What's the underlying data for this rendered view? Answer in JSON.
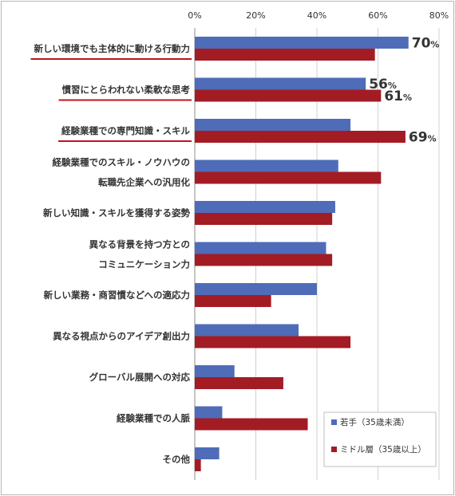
{
  "chart_data": {
    "type": "bar",
    "orientation": "horizontal",
    "xlim": [
      0,
      80
    ],
    "ticks": [
      "0%",
      "20%",
      "40%",
      "60%",
      "80%"
    ],
    "tick_values": [
      0,
      20,
      40,
      60,
      80
    ],
    "grid": true,
    "categories": [
      {
        "lines": [
          "新しい環境でも主体的に動ける行動力"
        ],
        "underline": true
      },
      {
        "lines": [
          "慣習にとらわれない柔軟な思考"
        ],
        "underline": true
      },
      {
        "lines": [
          "経験業種での専門知識・スキル"
        ],
        "underline": true
      },
      {
        "lines": [
          "経験業種でのスキル・ノウハウの",
          "転職先企業への汎用化"
        ],
        "underline": false
      },
      {
        "lines": [
          "新しい知識・スキルを獲得する姿勢"
        ],
        "underline": false
      },
      {
        "lines": [
          "異なる背景を持つ方との",
          "コミュニケーション力"
        ],
        "underline": false
      },
      {
        "lines": [
          "新しい業務・商習慣などへの適応力"
        ],
        "underline": false
      },
      {
        "lines": [
          "異なる視点からのアイデア創出力"
        ],
        "underline": false
      },
      {
        "lines": [
          "グローバル展開への対応"
        ],
        "underline": false
      },
      {
        "lines": [
          "経験業種での人脈"
        ],
        "underline": false
      },
      {
        "lines": [
          "その他"
        ],
        "underline": false
      }
    ],
    "series": [
      {
        "name": "若手（35歳未満）",
        "color": "#4f6cb8",
        "values": [
          70,
          56,
          51,
          47,
          46,
          43,
          40,
          34,
          13,
          9,
          8
        ]
      },
      {
        "name": "ミドル層（35歳以上）",
        "color": "#a31c24",
        "values": [
          59,
          61,
          69,
          61,
          45,
          45,
          25,
          51,
          29,
          37,
          2
        ]
      }
    ],
    "data_labels": [
      {
        "series": 0,
        "index": 0,
        "number": "70",
        "unit": "%"
      },
      {
        "series": 0,
        "index": 1,
        "number": "56",
        "unit": "%"
      },
      {
        "series": 1,
        "index": 1,
        "number": "61",
        "unit": "%"
      },
      {
        "series": 1,
        "index": 2,
        "number": "69",
        "unit": "%"
      }
    ],
    "legend_position": "bottom-right",
    "highlight_color": "#c0141c"
  }
}
